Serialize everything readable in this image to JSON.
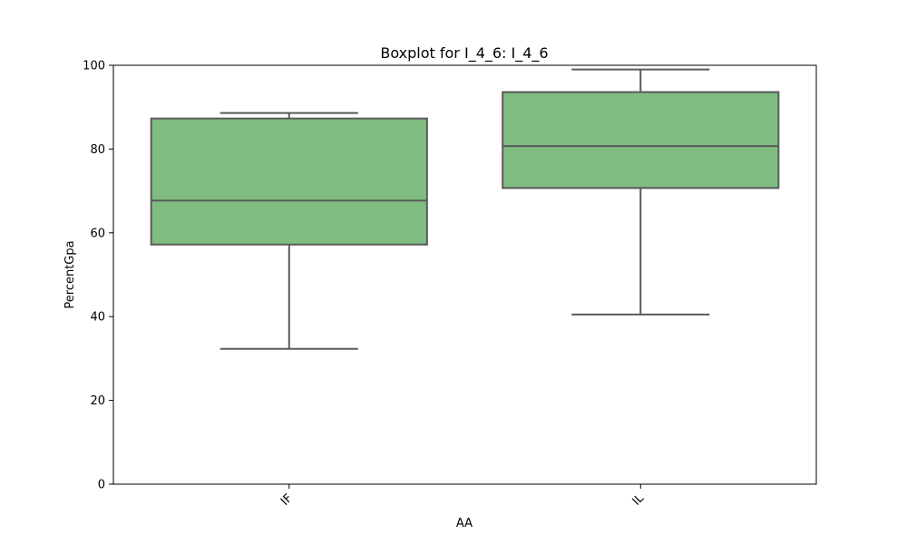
{
  "chart_data": {
    "type": "box",
    "title": "Boxplot for I_4_6: I_4_6",
    "xlabel": "AA",
    "ylabel": "PercentGpa",
    "ylim": [
      0,
      100
    ],
    "yticks": [
      0,
      20,
      40,
      60,
      80,
      100
    ],
    "categories": [
      "IF",
      "IL"
    ],
    "boxes": [
      {
        "category": "IF",
        "whisker_low": 32.3,
        "q1": 57.2,
        "median": 67.7,
        "q3": 87.3,
        "whisker_high": 88.6
      },
      {
        "category": "IL",
        "whisker_low": 40.5,
        "q1": 70.7,
        "median": 80.7,
        "q3": 93.6,
        "whisker_high": 99.0
      }
    ],
    "grid": false,
    "colors": {
      "box_fill": "#7fbc80",
      "box_edge": "#5a5a5a"
    }
  }
}
